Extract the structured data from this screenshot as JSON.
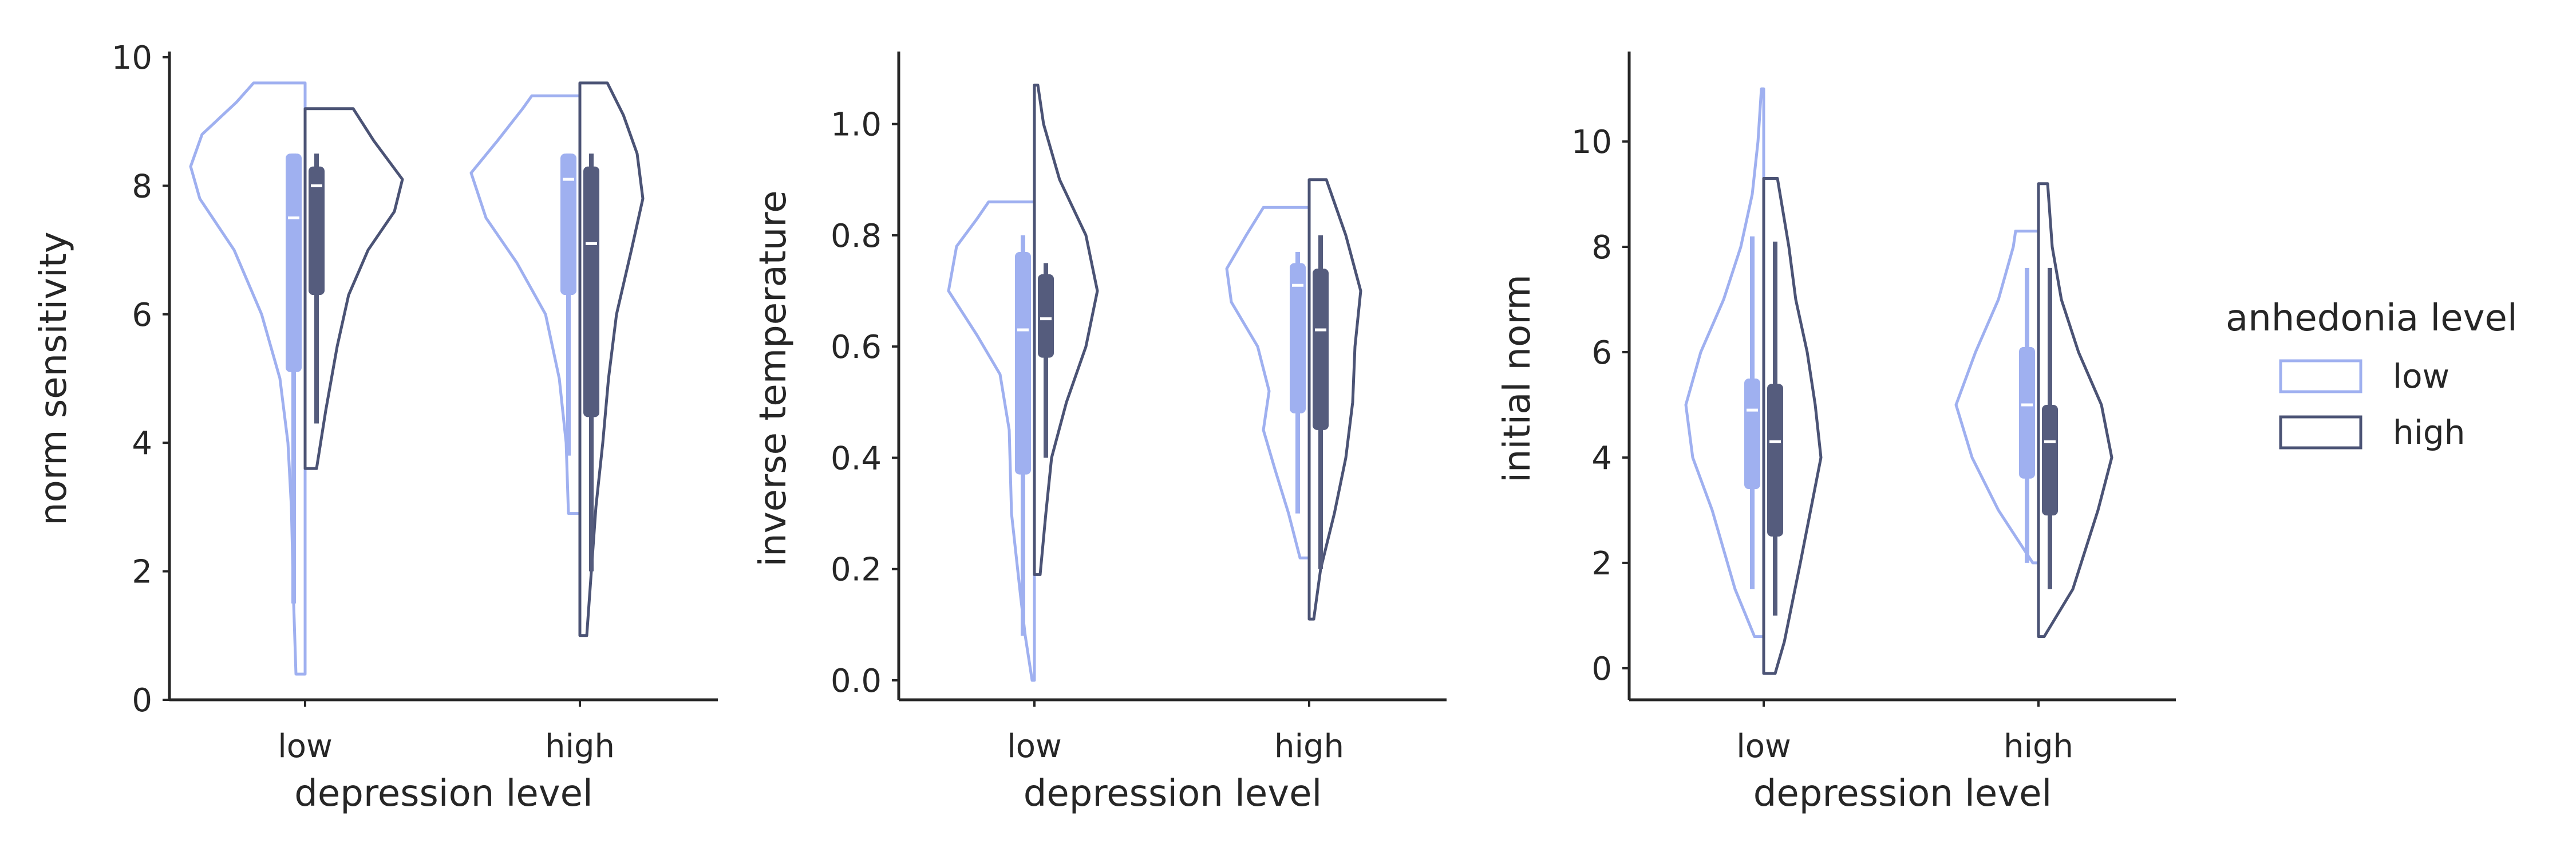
{
  "chart_data": [
    {
      "type": "violin",
      "xlabel": "depression level",
      "ylabel": "norm sensitivity",
      "categories": [
        "low",
        "high"
      ],
      "ylim": [
        0,
        10
      ],
      "yticks": [
        "0",
        "2",
        "4",
        "6",
        "8",
        "10"
      ],
      "series": [
        {
          "name": "low",
          "violins": [
            {
              "category": "low",
              "min": 0.4,
              "max": 9.6,
              "density": [
                [
                  0.4,
                  0.08
                ],
                [
                  1.5,
                  0.1
                ],
                [
                  3.0,
                  0.12
                ],
                [
                  4.0,
                  0.15
                ],
                [
                  5.0,
                  0.22
                ],
                [
                  6.0,
                  0.38
                ],
                [
                  7.0,
                  0.62
                ],
                [
                  7.8,
                  0.92
                ],
                [
                  8.3,
                  1.0
                ],
                [
                  8.8,
                  0.9
                ],
                [
                  9.3,
                  0.6
                ],
                [
                  9.6,
                  0.45
                ]
              ],
              "q1": 5.1,
              "median": 7.5,
              "q3": 8.5,
              "whisker_low": 1.5,
              "whisker_high": 8.5
            },
            {
              "category": "high",
              "min": 2.9,
              "max": 9.4,
              "density": [
                [
                  2.9,
                  0.1
                ],
                [
                  4.0,
                  0.12
                ],
                [
                  5.0,
                  0.18
                ],
                [
                  6.0,
                  0.3
                ],
                [
                  6.8,
                  0.55
                ],
                [
                  7.5,
                  0.82
                ],
                [
                  8.2,
                  0.95
                ],
                [
                  8.7,
                  0.72
                ],
                [
                  9.2,
                  0.5
                ],
                [
                  9.4,
                  0.42
                ]
              ],
              "q1": 6.3,
              "median": 8.1,
              "q3": 8.5,
              "whisker_low": 3.8,
              "whisker_high": 8.5
            }
          ]
        },
        {
          "name": "high",
          "violins": [
            {
              "category": "low",
              "min": 3.6,
              "max": 9.2,
              "density": [
                [
                  3.6,
                  0.1
                ],
                [
                  4.5,
                  0.18
                ],
                [
                  5.5,
                  0.28
                ],
                [
                  6.3,
                  0.38
                ],
                [
                  7.0,
                  0.55
                ],
                [
                  7.6,
                  0.78
                ],
                [
                  8.1,
                  0.85
                ],
                [
                  8.7,
                  0.6
                ],
                [
                  9.2,
                  0.42
                ]
              ],
              "q1": 6.3,
              "median": 8.0,
              "q3": 8.3,
              "whisker_low": 4.3,
              "whisker_high": 8.5
            },
            {
              "category": "high",
              "min": 1.0,
              "max": 9.6,
              "density": [
                [
                  1.0,
                  0.06
                ],
                [
                  2.0,
                  0.1
                ],
                [
                  3.0,
                  0.14
                ],
                [
                  4.0,
                  0.2
                ],
                [
                  5.0,
                  0.25
                ],
                [
                  6.0,
                  0.32
                ],
                [
                  7.0,
                  0.45
                ],
                [
                  7.8,
                  0.55
                ],
                [
                  8.5,
                  0.5
                ],
                [
                  9.1,
                  0.38
                ],
                [
                  9.6,
                  0.24
                ]
              ],
              "q1": 4.4,
              "median": 7.1,
              "q3": 8.3,
              "whisker_low": 2.0,
              "whisker_high": 8.5
            }
          ]
        }
      ]
    },
    {
      "type": "violin",
      "xlabel": "depression level",
      "ylabel": "inverse temperature",
      "categories": [
        "low",
        "high"
      ],
      "ylim": [
        -0.035,
        1.12
      ],
      "yticks": [
        "0.0",
        "0.2",
        "0.4",
        "0.6",
        "0.8",
        "1.0"
      ],
      "series": [
        {
          "name": "low",
          "violins": [
            {
              "category": "low",
              "min": 0.0,
              "max": 0.86,
              "density": [
                [
                  0.0,
                  0.02
                ],
                [
                  0.08,
                  0.08
                ],
                [
                  0.15,
                  0.12
                ],
                [
                  0.3,
                  0.2
                ],
                [
                  0.45,
                  0.22
                ],
                [
                  0.55,
                  0.3
                ],
                [
                  0.62,
                  0.5
                ],
                [
                  0.7,
                  0.75
                ],
                [
                  0.78,
                  0.68
                ],
                [
                  0.83,
                  0.5
                ],
                [
                  0.86,
                  0.4
                ]
              ],
              "q1": 0.37,
              "median": 0.63,
              "q3": 0.77,
              "whisker_low": 0.08,
              "whisker_high": 0.8
            },
            {
              "category": "high",
              "min": 0.22,
              "max": 0.85,
              "density": [
                [
                  0.22,
                  0.08
                ],
                [
                  0.3,
                  0.18
                ],
                [
                  0.38,
                  0.3
                ],
                [
                  0.45,
                  0.4
                ],
                [
                  0.52,
                  0.35
                ],
                [
                  0.6,
                  0.45
                ],
                [
                  0.68,
                  0.68
                ],
                [
                  0.74,
                  0.72
                ],
                [
                  0.8,
                  0.55
                ],
                [
                  0.85,
                  0.4
                ]
              ],
              "q1": 0.48,
              "median": 0.71,
              "q3": 0.75,
              "whisker_low": 0.3,
              "whisker_high": 0.77
            }
          ]
        },
        {
          "name": "high",
          "violins": [
            {
              "category": "low",
              "min": 0.19,
              "max": 1.07,
              "density": [
                [
                  0.19,
                  0.05
                ],
                [
                  0.3,
                  0.1
                ],
                [
                  0.4,
                  0.15
                ],
                [
                  0.5,
                  0.28
                ],
                [
                  0.6,
                  0.45
                ],
                [
                  0.7,
                  0.55
                ],
                [
                  0.8,
                  0.45
                ],
                [
                  0.9,
                  0.22
                ],
                [
                  1.0,
                  0.08
                ],
                [
                  1.07,
                  0.03
                ]
              ],
              "q1": 0.58,
              "median": 0.65,
              "q3": 0.73,
              "whisker_low": 0.4,
              "whisker_high": 0.75
            },
            {
              "category": "high",
              "min": 0.11,
              "max": 0.9,
              "density": [
                [
                  0.11,
                  0.04
                ],
                [
                  0.2,
                  0.1
                ],
                [
                  0.3,
                  0.22
                ],
                [
                  0.4,
                  0.32
                ],
                [
                  0.5,
                  0.38
                ],
                [
                  0.6,
                  0.4
                ],
                [
                  0.7,
                  0.45
                ],
                [
                  0.8,
                  0.32
                ],
                [
                  0.9,
                  0.15
                ]
              ],
              "q1": 0.45,
              "median": 0.63,
              "q3": 0.74,
              "whisker_low": 0.2,
              "whisker_high": 0.8
            }
          ]
        }
      ]
    },
    {
      "type": "violin",
      "xlabel": "depression level",
      "ylabel": "initial norm",
      "categories": [
        "low",
        "high"
      ],
      "ylim": [
        -0.6,
        11.6
      ],
      "yticks": [
        "0",
        "2",
        "4",
        "6",
        "8",
        "10"
      ],
      "series": [
        {
          "name": "low",
          "violins": [
            {
              "category": "low",
              "min": 0.6,
              "max": 11.0,
              "density": [
                [
                  0.6,
                  0.08
                ],
                [
                  1.5,
                  0.25
                ],
                [
                  3.0,
                  0.45
                ],
                [
                  4.0,
                  0.62
                ],
                [
                  5.0,
                  0.68
                ],
                [
                  6.0,
                  0.55
                ],
                [
                  7.0,
                  0.35
                ],
                [
                  8.0,
                  0.2
                ],
                [
                  9.0,
                  0.1
                ],
                [
                  10.0,
                  0.05
                ],
                [
                  11.0,
                  0.02
                ]
              ],
              "q1": 3.4,
              "median": 4.9,
              "q3": 5.5,
              "whisker_low": 1.5,
              "whisker_high": 8.2
            },
            {
              "category": "high",
              "min": 2.0,
              "max": 8.3,
              "density": [
                [
                  2.0,
                  0.05
                ],
                [
                  3.0,
                  0.35
                ],
                [
                  4.0,
                  0.58
                ],
                [
                  5.0,
                  0.72
                ],
                [
                  6.0,
                  0.55
                ],
                [
                  7.0,
                  0.35
                ],
                [
                  8.0,
                  0.22
                ],
                [
                  8.3,
                  0.2
                ]
              ],
              "q1": 3.6,
              "median": 5.0,
              "q3": 6.1,
              "whisker_low": 2.0,
              "whisker_high": 7.6
            }
          ]
        },
        {
          "name": "high",
          "violins": [
            {
              "category": "low",
              "min": -0.1,
              "max": 9.3,
              "density": [
                [
                  -0.1,
                  0.1
                ],
                [
                  0.5,
                  0.18
                ],
                [
                  2.0,
                  0.32
                ],
                [
                  4.0,
                  0.5
                ],
                [
                  5.0,
                  0.45
                ],
                [
                  6.0,
                  0.38
                ],
                [
                  7.0,
                  0.28
                ],
                [
                  8.0,
                  0.22
                ],
                [
                  9.3,
                  0.12
                ]
              ],
              "q1": 2.5,
              "median": 4.3,
              "q3": 5.4,
              "whisker_low": 1.0,
              "whisker_high": 8.1
            },
            {
              "category": "high",
              "min": 0.6,
              "max": 9.2,
              "density": [
                [
                  0.6,
                  0.05
                ],
                [
                  1.5,
                  0.3
                ],
                [
                  3.0,
                  0.52
                ],
                [
                  4.0,
                  0.64
                ],
                [
                  5.0,
                  0.55
                ],
                [
                  6.0,
                  0.35
                ],
                [
                  7.0,
                  0.2
                ],
                [
                  8.0,
                  0.12
                ],
                [
                  9.2,
                  0.08
                ]
              ],
              "q1": 2.9,
              "median": 4.3,
              "q3": 5.0,
              "whisker_low": 1.5,
              "whisker_high": 7.6
            }
          ]
        }
      ]
    }
  ],
  "legend": {
    "title": "anhedonia level",
    "items": [
      {
        "label": "low",
        "color": "#9fb0f0"
      },
      {
        "label": "high",
        "color": "#4b5375"
      }
    ]
  },
  "colors": {
    "low_outline": "#9fb0f0",
    "high_outline": "#4b5375",
    "low_box": "#9fb0f0",
    "high_box": "#555c7d",
    "median": "#ffffff",
    "axis": "#262626"
  },
  "grid": false,
  "legend_placement": "right"
}
